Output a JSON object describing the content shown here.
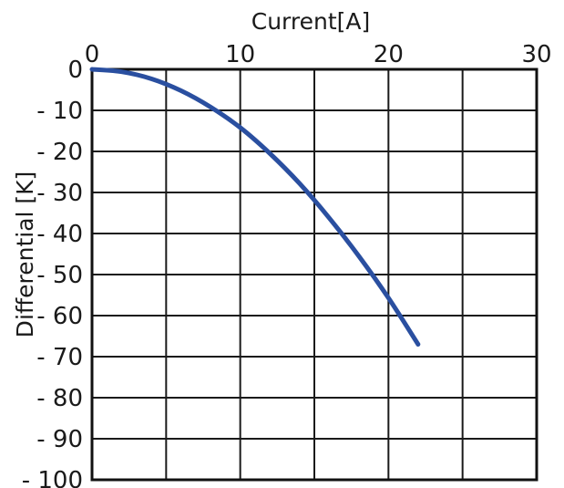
{
  "chart_data": {
    "type": "line",
    "xlabel": "Current[A]",
    "ylabel": "Differential [K]",
    "xlim": [
      0,
      30
    ],
    "ylim": [
      -100,
      0
    ],
    "x_axis_position": "top",
    "grid": true,
    "x_ticks": [
      0,
      10,
      20,
      30
    ],
    "x_tick_labels": [
      "0",
      "10",
      "20",
      "30"
    ],
    "y_ticks": [
      0,
      -10,
      -20,
      -30,
      -40,
      -50,
      -60,
      -70,
      -80,
      -90,
      -100
    ],
    "y_tick_labels": [
      "0",
      "- 10",
      "- 20",
      "- 30",
      "- 40",
      "- 50",
      "- 60",
      "- 70",
      "- 80",
      "- 90",
      "- 100"
    ],
    "series": [
      {
        "color": "#2a4fa0",
        "x": [
          0,
          2,
          4,
          6,
          8,
          10,
          12,
          14,
          16,
          18,
          20,
          22
        ],
        "y": [
          0,
          -0.6,
          -2.3,
          -5.2,
          -9.2,
          -14.2,
          -20.5,
          -27.8,
          -36.2,
          -45.5,
          -55.7,
          -67.0
        ]
      }
    ]
  }
}
